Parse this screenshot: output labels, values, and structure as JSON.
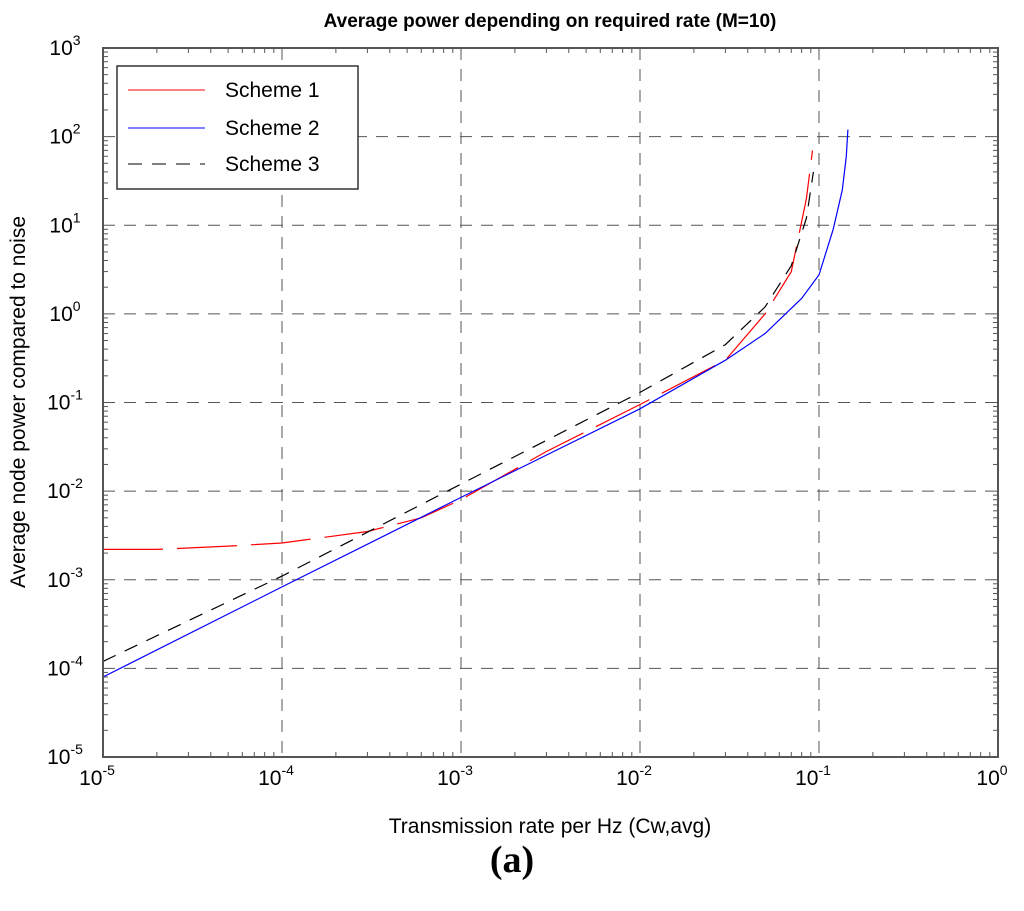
{
  "chart_data": {
    "type": "line",
    "title": "Average power depending on required rate (M=10)",
    "xlabel": "Transmission rate per Hz (Cw,avg)",
    "ylabel": "Average node power compared to noise",
    "xscale": "log",
    "yscale": "log",
    "xlim": [
      1e-05,
      1
    ],
    "ylim": [
      1e-05,
      1000
    ],
    "xticks": [
      {
        "exp": "-5"
      },
      {
        "exp": "-4"
      },
      {
        "exp": "-3"
      },
      {
        "exp": "-2"
      },
      {
        "exp": "-1"
      },
      {
        "exp": "0"
      }
    ],
    "yticks": [
      {
        "exp": "-5"
      },
      {
        "exp": "-4"
      },
      {
        "exp": "-3"
      },
      {
        "exp": "-2"
      },
      {
        "exp": "-1"
      },
      {
        "exp": "0"
      },
      {
        "exp": "1"
      },
      {
        "exp": "2"
      },
      {
        "exp": "3"
      }
    ],
    "grid": true,
    "legend_position": "top-left",
    "series": [
      {
        "name": "Scheme 1",
        "color": "#ff0000",
        "style": "solid",
        "x": [
          1e-05,
          2e-05,
          5e-05,
          0.0001,
          0.0003,
          0.0006,
          0.001,
          0.003,
          0.01,
          0.03,
          0.05,
          0.07,
          0.085,
          0.092
        ],
        "y": [
          0.0022,
          0.0022,
          0.0024,
          0.0026,
          0.0035,
          0.005,
          0.008,
          0.028,
          0.095,
          0.3,
          1.0,
          3,
          20,
          70
        ]
      },
      {
        "name": "Scheme 2",
        "color": "#0000ff",
        "style": "solid",
        "x": [
          1e-05,
          0.0001,
          0.001,
          0.01,
          0.03,
          0.05,
          0.08,
          0.1,
          0.12,
          0.135,
          0.142,
          0.145
        ],
        "y": [
          8e-05,
          0.00083,
          0.0085,
          0.085,
          0.3,
          0.6,
          1.5,
          2.75,
          9,
          25,
          60,
          120
        ]
      },
      {
        "name": "Scheme 3",
        "color": "#000000",
        "style": "dashed",
        "x": [
          1e-05,
          0.0001,
          0.001,
          0.01,
          0.03,
          0.05,
          0.07,
          0.085,
          0.093
        ],
        "y": [
          0.00012,
          0.0011,
          0.012,
          0.13,
          0.45,
          1.2,
          3.5,
          12,
          40
        ]
      }
    ]
  },
  "caption": "(a)"
}
